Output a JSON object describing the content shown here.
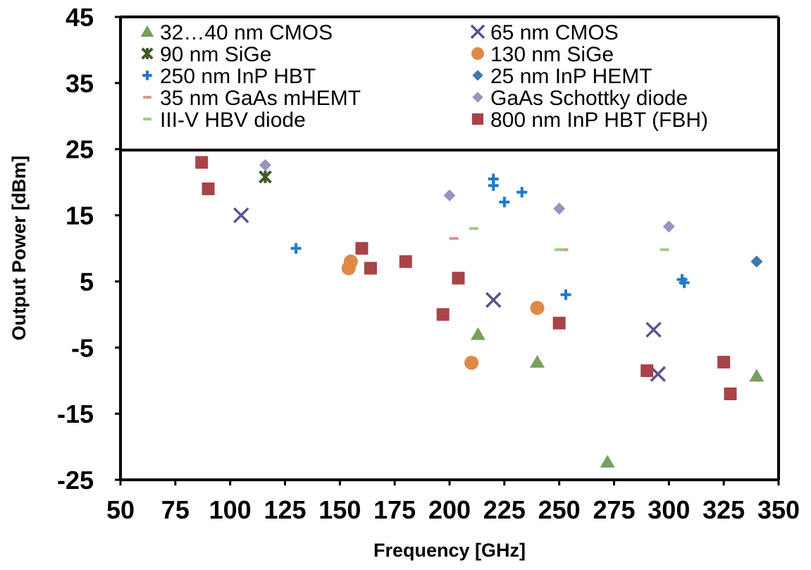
{
  "chart_data": {
    "type": "scatter",
    "title": "",
    "xlabel": "Frequency [GHz]",
    "ylabel": "Output Power  [dBm]",
    "xlim": [
      50,
      350
    ],
    "ylim": [
      -25,
      45
    ],
    "xticks": [
      "50",
      "75",
      "100",
      "125",
      "150",
      "175",
      "200",
      "225",
      "250",
      "275",
      "300",
      "325",
      "350"
    ],
    "yticks": [
      "45",
      "35",
      "25",
      "15",
      "5",
      "-5",
      "-15",
      "-25"
    ],
    "grid": false,
    "legend_position": "top, inside plot area, two columns",
    "series": [
      {
        "name": "32…40 nm CMOS",
        "marker": "triangle",
        "color": "#77A05A",
        "points": [
          [
            213,
            -3
          ],
          [
            240,
            -7.2
          ],
          [
            272,
            -22.3
          ],
          [
            340,
            -9.3
          ]
        ]
      },
      {
        "name": "65 nm CMOS",
        "marker": "x",
        "color": "#5E5090",
        "points": [
          [
            105,
            15
          ],
          [
            220,
            2.2
          ],
          [
            293,
            -2.3
          ],
          [
            295,
            -9
          ]
        ]
      },
      {
        "name": "90 nm SiGe",
        "marker": "star",
        "color": "#3E5A2A",
        "points": [
          [
            116,
            20.8
          ]
        ]
      },
      {
        "name": "130 nm SiGe",
        "marker": "circle",
        "color": "#DE8A47",
        "points": [
          [
            154,
            7
          ],
          [
            155,
            8
          ],
          [
            210,
            -7.3
          ],
          [
            240,
            1
          ]
        ]
      },
      {
        "name": "250 nm InP HBT",
        "marker": "plus",
        "color": "#1F7ACB",
        "points": [
          [
            130,
            10
          ],
          [
            220,
            20.5
          ],
          [
            220,
            19.5
          ],
          [
            225,
            17
          ],
          [
            233,
            18.5
          ],
          [
            253,
            3
          ],
          [
            306,
            5.3
          ],
          [
            307,
            4.8
          ]
        ]
      },
      {
        "name": "25 nm InP HEMT",
        "marker": "diamond",
        "color": "#3F77B0",
        "points": [
          [
            340,
            8
          ]
        ]
      },
      {
        "name": "35 nm GaAs mHEMT",
        "marker": "dash",
        "color": "#D6958F",
        "points": [
          [
            202,
            11.5
          ],
          [
            252,
            9.8
          ]
        ]
      },
      {
        "name": "GaAs Schottky diode",
        "marker": "diamond",
        "color": "#9A93BF",
        "points": [
          [
            116,
            22.6
          ],
          [
            200,
            18
          ],
          [
            250,
            16
          ],
          [
            300,
            13.3
          ]
        ]
      },
      {
        "name": "III-V HBV diode",
        "marker": "dash",
        "color": "#9FCC85",
        "points": [
          [
            211,
            13
          ],
          [
            250,
            9.8
          ],
          [
            298,
            9.8
          ]
        ]
      },
      {
        "name": "800 nm InP HBT (FBH)",
        "marker": "square",
        "color": "#A84347",
        "points": [
          [
            87,
            23
          ],
          [
            90,
            19
          ],
          [
            160,
            10
          ],
          [
            164,
            7
          ],
          [
            180,
            8
          ],
          [
            197,
            0
          ],
          [
            204,
            5.5
          ],
          [
            250,
            -1.3
          ],
          [
            290,
            -8.5
          ],
          [
            325,
            -7.2
          ],
          [
            328,
            -12
          ]
        ]
      }
    ]
  }
}
